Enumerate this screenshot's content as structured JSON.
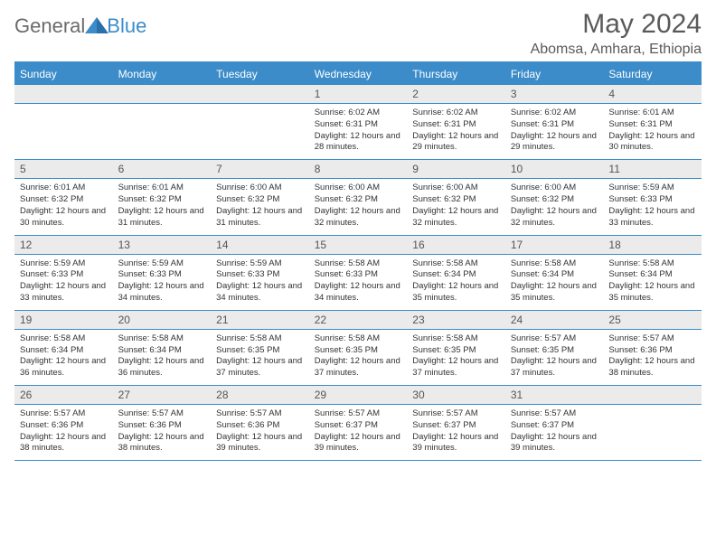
{
  "brand": {
    "text1": "General",
    "text2": "Blue"
  },
  "title": "May 2024",
  "subtitle": "Abomsa, Amhara, Ethiopia",
  "colors": {
    "accent": "#3b8cc9",
    "header_text": "#ffffff",
    "daynum_bg": "#ebebeb",
    "text_gray": "#5a5a5a",
    "body_text": "#333333",
    "background": "#ffffff"
  },
  "day_names": [
    "Sunday",
    "Monday",
    "Tuesday",
    "Wednesday",
    "Thursday",
    "Friday",
    "Saturday"
  ],
  "weeks": [
    [
      {
        "n": "",
        "sr": "",
        "ss": "",
        "dl": ""
      },
      {
        "n": "",
        "sr": "",
        "ss": "",
        "dl": ""
      },
      {
        "n": "",
        "sr": "",
        "ss": "",
        "dl": ""
      },
      {
        "n": "1",
        "sr": "6:02 AM",
        "ss": "6:31 PM",
        "dl": "12 hours and 28 minutes."
      },
      {
        "n": "2",
        "sr": "6:02 AM",
        "ss": "6:31 PM",
        "dl": "12 hours and 29 minutes."
      },
      {
        "n": "3",
        "sr": "6:02 AM",
        "ss": "6:31 PM",
        "dl": "12 hours and 29 minutes."
      },
      {
        "n": "4",
        "sr": "6:01 AM",
        "ss": "6:31 PM",
        "dl": "12 hours and 30 minutes."
      }
    ],
    [
      {
        "n": "5",
        "sr": "6:01 AM",
        "ss": "6:32 PM",
        "dl": "12 hours and 30 minutes."
      },
      {
        "n": "6",
        "sr": "6:01 AM",
        "ss": "6:32 PM",
        "dl": "12 hours and 31 minutes."
      },
      {
        "n": "7",
        "sr": "6:00 AM",
        "ss": "6:32 PM",
        "dl": "12 hours and 31 minutes."
      },
      {
        "n": "8",
        "sr": "6:00 AM",
        "ss": "6:32 PM",
        "dl": "12 hours and 32 minutes."
      },
      {
        "n": "9",
        "sr": "6:00 AM",
        "ss": "6:32 PM",
        "dl": "12 hours and 32 minutes."
      },
      {
        "n": "10",
        "sr": "6:00 AM",
        "ss": "6:32 PM",
        "dl": "12 hours and 32 minutes."
      },
      {
        "n": "11",
        "sr": "5:59 AM",
        "ss": "6:33 PM",
        "dl": "12 hours and 33 minutes."
      }
    ],
    [
      {
        "n": "12",
        "sr": "5:59 AM",
        "ss": "6:33 PM",
        "dl": "12 hours and 33 minutes."
      },
      {
        "n": "13",
        "sr": "5:59 AM",
        "ss": "6:33 PM",
        "dl": "12 hours and 34 minutes."
      },
      {
        "n": "14",
        "sr": "5:59 AM",
        "ss": "6:33 PM",
        "dl": "12 hours and 34 minutes."
      },
      {
        "n": "15",
        "sr": "5:58 AM",
        "ss": "6:33 PM",
        "dl": "12 hours and 34 minutes."
      },
      {
        "n": "16",
        "sr": "5:58 AM",
        "ss": "6:34 PM",
        "dl": "12 hours and 35 minutes."
      },
      {
        "n": "17",
        "sr": "5:58 AM",
        "ss": "6:34 PM",
        "dl": "12 hours and 35 minutes."
      },
      {
        "n": "18",
        "sr": "5:58 AM",
        "ss": "6:34 PM",
        "dl": "12 hours and 35 minutes."
      }
    ],
    [
      {
        "n": "19",
        "sr": "5:58 AM",
        "ss": "6:34 PM",
        "dl": "12 hours and 36 minutes."
      },
      {
        "n": "20",
        "sr": "5:58 AM",
        "ss": "6:34 PM",
        "dl": "12 hours and 36 minutes."
      },
      {
        "n": "21",
        "sr": "5:58 AM",
        "ss": "6:35 PM",
        "dl": "12 hours and 37 minutes."
      },
      {
        "n": "22",
        "sr": "5:58 AM",
        "ss": "6:35 PM",
        "dl": "12 hours and 37 minutes."
      },
      {
        "n": "23",
        "sr": "5:58 AM",
        "ss": "6:35 PM",
        "dl": "12 hours and 37 minutes."
      },
      {
        "n": "24",
        "sr": "5:57 AM",
        "ss": "6:35 PM",
        "dl": "12 hours and 37 minutes."
      },
      {
        "n": "25",
        "sr": "5:57 AM",
        "ss": "6:36 PM",
        "dl": "12 hours and 38 minutes."
      }
    ],
    [
      {
        "n": "26",
        "sr": "5:57 AM",
        "ss": "6:36 PM",
        "dl": "12 hours and 38 minutes."
      },
      {
        "n": "27",
        "sr": "5:57 AM",
        "ss": "6:36 PM",
        "dl": "12 hours and 38 minutes."
      },
      {
        "n": "28",
        "sr": "5:57 AM",
        "ss": "6:36 PM",
        "dl": "12 hours and 39 minutes."
      },
      {
        "n": "29",
        "sr": "5:57 AM",
        "ss": "6:37 PM",
        "dl": "12 hours and 39 minutes."
      },
      {
        "n": "30",
        "sr": "5:57 AM",
        "ss": "6:37 PM",
        "dl": "12 hours and 39 minutes."
      },
      {
        "n": "31",
        "sr": "5:57 AM",
        "ss": "6:37 PM",
        "dl": "12 hours and 39 minutes."
      },
      {
        "n": "",
        "sr": "",
        "ss": "",
        "dl": ""
      }
    ]
  ],
  "labels": {
    "sunrise": "Sunrise:",
    "sunset": "Sunset:",
    "daylight": "Daylight:"
  }
}
